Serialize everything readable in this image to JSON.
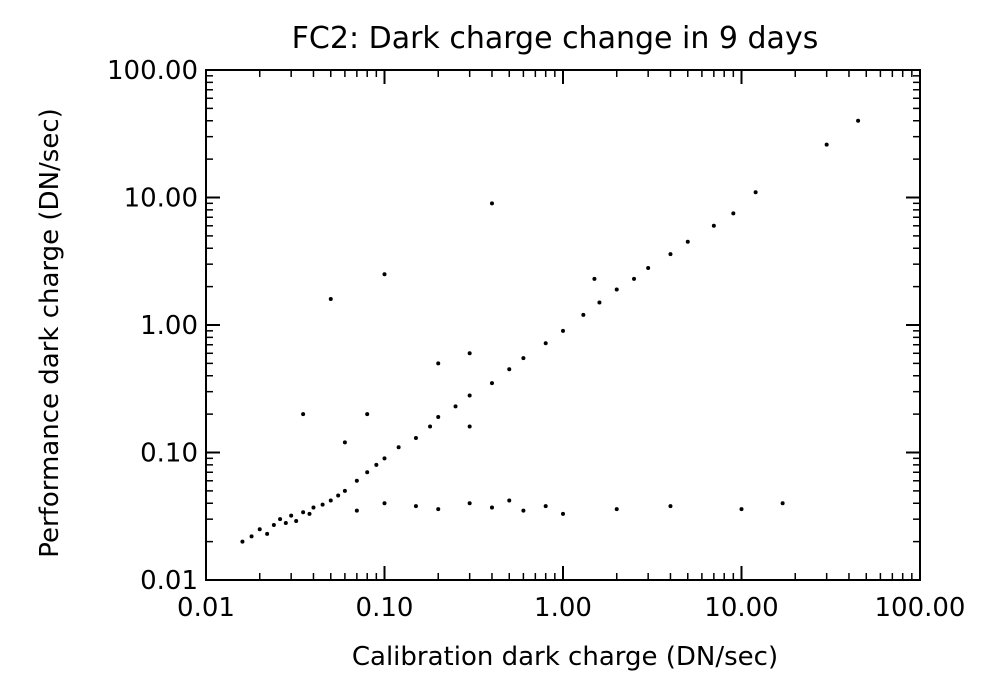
{
  "chart_data": {
    "type": "scatter",
    "title": "FC2: Dark charge change in 9 days",
    "xlabel": "Calibration dark charge (DN/sec)",
    "ylabel": "Performance dark charge (DN/sec)",
    "xscale": "log",
    "yscale": "log",
    "xlim": [
      0.01,
      100
    ],
    "ylim": [
      0.01,
      100
    ],
    "xticks": [
      0.01,
      0.1,
      1,
      10,
      100
    ],
    "yticks": [
      0.01,
      0.1,
      1,
      10,
      100
    ],
    "xtick_labels": [
      "0.01",
      "0.10",
      "1.00",
      "10.00",
      "100.00"
    ],
    "ytick_labels": [
      "0.01",
      "0.10",
      "1.00",
      "10.00",
      "100.00"
    ],
    "grid": false,
    "legend": "none",
    "marker_color": "#000000",
    "series": [
      {
        "points": [
          [
            0.016,
            0.02
          ],
          [
            0.018,
            0.022
          ],
          [
            0.02,
            0.025
          ],
          [
            0.022,
            0.023
          ],
          [
            0.024,
            0.027
          ],
          [
            0.026,
            0.03
          ],
          [
            0.028,
            0.028
          ],
          [
            0.03,
            0.032
          ],
          [
            0.032,
            0.029
          ],
          [
            0.035,
            0.034
          ],
          [
            0.038,
            0.033
          ],
          [
            0.04,
            0.037
          ],
          [
            0.045,
            0.039
          ],
          [
            0.05,
            0.042
          ],
          [
            0.055,
            0.046
          ],
          [
            0.06,
            0.05
          ],
          [
            0.07,
            0.06
          ],
          [
            0.08,
            0.07
          ],
          [
            0.09,
            0.08
          ],
          [
            0.1,
            0.09
          ],
          [
            0.12,
            0.11
          ],
          [
            0.15,
            0.13
          ],
          [
            0.18,
            0.16
          ],
          [
            0.2,
            0.19
          ],
          [
            0.25,
            0.23
          ],
          [
            0.3,
            0.28
          ],
          [
            0.4,
            0.35
          ],
          [
            0.5,
            0.45
          ],
          [
            0.6,
            0.55
          ],
          [
            0.8,
            0.72
          ],
          [
            1.0,
            0.9
          ],
          [
            1.3,
            1.2
          ],
          [
            1.6,
            1.5
          ],
          [
            2.0,
            1.9
          ],
          [
            2.5,
            2.3
          ],
          [
            3.0,
            2.8
          ],
          [
            4.0,
            3.6
          ],
          [
            5.0,
            4.5
          ],
          [
            7.0,
            6.0
          ],
          [
            9.0,
            7.5
          ],
          [
            12.0,
            11.0
          ],
          [
            30.0,
            26.0
          ],
          [
            45.0,
            40.0
          ],
          [
            0.07,
            0.035
          ],
          [
            0.1,
            0.04
          ],
          [
            0.15,
            0.038
          ],
          [
            0.2,
            0.036
          ],
          [
            0.3,
            0.04
          ],
          [
            0.4,
            0.037
          ],
          [
            0.5,
            0.042
          ],
          [
            0.6,
            0.035
          ],
          [
            0.8,
            0.038
          ],
          [
            1.0,
            0.033
          ],
          [
            2.0,
            0.036
          ],
          [
            4.0,
            0.038
          ],
          [
            10.0,
            0.036
          ],
          [
            17.0,
            0.04
          ],
          [
            0.05,
            1.6
          ],
          [
            0.1,
            2.5
          ],
          [
            0.4,
            9.0
          ],
          [
            0.3,
            0.16
          ],
          [
            0.2,
            0.5
          ],
          [
            0.035,
            0.2
          ],
          [
            0.06,
            0.12
          ],
          [
            0.08,
            0.2
          ],
          [
            0.3,
            0.6
          ],
          [
            1.5,
            2.3
          ]
        ]
      }
    ]
  }
}
